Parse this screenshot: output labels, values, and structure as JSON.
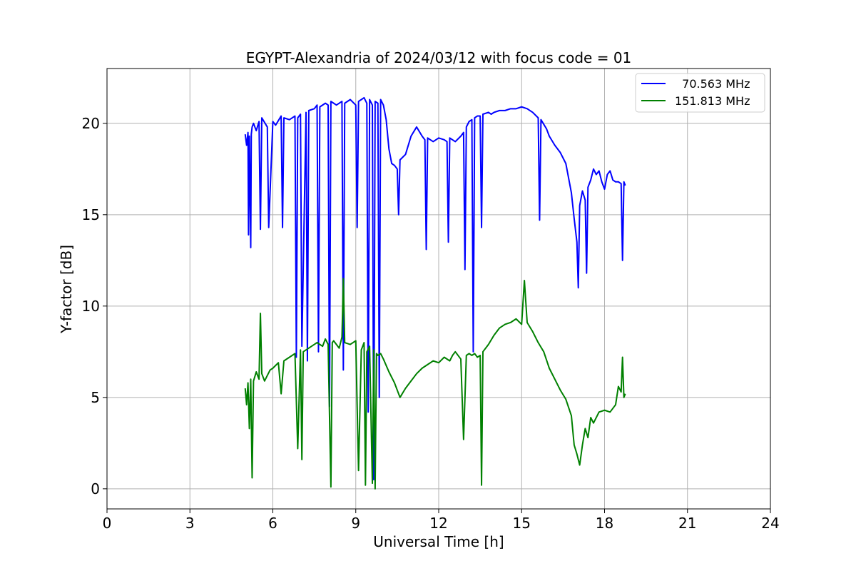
{
  "chart_data": {
    "type": "line",
    "title": "EGYPT-Alexandria of 2024/03/12 with focus code = 01",
    "xlabel": "Universal Time [h]",
    "ylabel": "Y-factor [dB]",
    "xlim": [
      0,
      24
    ],
    "ylim": [
      -1.1,
      23
    ],
    "xticks": [
      0,
      3,
      6,
      9,
      12,
      15,
      18,
      21,
      24
    ],
    "yticks": [
      0,
      5,
      10,
      15,
      20
    ],
    "grid": true,
    "legend": "top-right",
    "series": [
      {
        "name": "  70.563 MHz",
        "color": "#0000ff",
        "x": [
          5.0,
          5.05,
          5.1,
          5.12,
          5.15,
          5.2,
          5.22,
          5.25,
          5.3,
          5.4,
          5.5,
          5.55,
          5.6,
          5.8,
          5.85,
          6.0,
          6.1,
          6.3,
          6.35,
          6.4,
          6.6,
          6.8,
          6.85,
          6.9,
          7.0,
          7.05,
          7.2,
          7.25,
          7.3,
          7.5,
          7.6,
          7.65,
          7.7,
          7.9,
          8.0,
          8.05,
          8.1,
          8.2,
          8.3,
          8.5,
          8.55,
          8.6,
          8.8,
          9.0,
          9.05,
          9.1,
          9.3,
          9.4,
          9.45,
          9.5,
          9.6,
          9.65,
          9.7,
          9.8,
          9.85,
          9.9,
          10.0,
          10.1,
          10.2,
          10.3,
          10.4,
          10.5,
          10.55,
          10.6,
          10.8,
          11.0,
          11.2,
          11.4,
          11.5,
          11.55,
          11.6,
          11.8,
          12.0,
          12.2,
          12.3,
          12.35,
          12.4,
          12.6,
          12.8,
          12.9,
          12.95,
          13.0,
          13.1,
          13.2,
          13.25,
          13.3,
          13.4,
          13.5,
          13.55,
          13.6,
          13.8,
          13.9,
          14.0,
          14.2,
          14.4,
          14.6,
          14.8,
          15.0,
          15.2,
          15.4,
          15.6,
          15.65,
          15.7,
          15.9,
          16.0,
          16.2,
          16.4,
          16.6,
          16.8,
          16.9,
          17.0,
          17.05,
          17.1,
          17.2,
          17.3,
          17.35,
          17.4,
          17.5,
          17.6,
          17.7,
          17.8,
          17.9,
          18.0,
          18.1,
          18.2,
          18.3,
          18.4,
          18.5,
          18.6,
          18.65,
          18.7,
          18.75
        ],
        "y": [
          19.4,
          18.8,
          19.5,
          13.9,
          19.3,
          13.2,
          19.4,
          19.8,
          20.0,
          19.6,
          20.1,
          14.2,
          20.3,
          19.8,
          14.3,
          20.1,
          19.9,
          20.4,
          14.3,
          20.3,
          20.2,
          20.4,
          7.2,
          20.3,
          20.5,
          7.8,
          20.6,
          7.0,
          20.7,
          20.8,
          21.0,
          7.5,
          20.9,
          21.1,
          21.0,
          4.5,
          21.2,
          21.1,
          21.0,
          21.2,
          6.5,
          21.1,
          21.3,
          21.0,
          14.3,
          21.2,
          21.4,
          21.1,
          4.2,
          21.3,
          21.0,
          0.5,
          21.2,
          21.1,
          5.0,
          21.3,
          21.0,
          20.2,
          18.6,
          17.8,
          17.7,
          17.5,
          15.0,
          18.0,
          18.3,
          19.3,
          19.8,
          19.3,
          19.1,
          13.1,
          19.2,
          19.0,
          19.2,
          19.1,
          19.0,
          13.5,
          19.2,
          19.0,
          19.3,
          19.5,
          12.0,
          19.8,
          20.1,
          20.2,
          7.5,
          20.3,
          20.4,
          20.4,
          14.3,
          20.5,
          20.6,
          20.5,
          20.6,
          20.7,
          20.7,
          20.8,
          20.8,
          20.9,
          20.8,
          20.6,
          20.3,
          14.7,
          20.2,
          19.7,
          19.3,
          18.8,
          18.4,
          17.8,
          16.2,
          14.8,
          13.5,
          11.0,
          15.5,
          16.3,
          15.8,
          11.8,
          16.5,
          16.9,
          17.5,
          17.2,
          17.4,
          16.8,
          16.4,
          17.2,
          17.4,
          16.9,
          16.8,
          16.8,
          16.7,
          12.5,
          16.8,
          16.6
        ]
      },
      {
        "name": "151.813 MHz",
        "color": "#008000",
        "x": [
          5.0,
          5.05,
          5.1,
          5.15,
          5.2,
          5.25,
          5.3,
          5.4,
          5.5,
          5.55,
          5.6,
          5.7,
          5.8,
          5.9,
          6.0,
          6.2,
          6.3,
          6.4,
          6.6,
          6.8,
          6.9,
          7.0,
          7.05,
          7.1,
          7.3,
          7.5,
          7.6,
          7.8,
          7.9,
          8.0,
          8.1,
          8.15,
          8.2,
          8.4,
          8.5,
          8.55,
          8.6,
          8.8,
          9.0,
          9.1,
          9.2,
          9.3,
          9.35,
          9.4,
          9.5,
          9.6,
          9.65,
          9.7,
          9.75,
          9.8,
          9.9,
          10.0,
          10.2,
          10.4,
          10.6,
          10.8,
          11.0,
          11.2,
          11.4,
          11.6,
          11.8,
          12.0,
          12.2,
          12.4,
          12.5,
          12.6,
          12.8,
          12.9,
          13.0,
          13.1,
          13.2,
          13.3,
          13.4,
          13.5,
          13.55,
          13.6,
          13.8,
          14.0,
          14.2,
          14.4,
          14.6,
          14.8,
          15.0,
          15.1,
          15.2,
          15.4,
          15.6,
          15.8,
          16.0,
          16.2,
          16.4,
          16.6,
          16.8,
          16.9,
          17.0,
          17.1,
          17.2,
          17.3,
          17.4,
          17.5,
          17.6,
          17.8,
          18.0,
          18.2,
          18.4,
          18.5,
          18.6,
          18.65,
          18.7,
          18.75
        ],
        "y": [
          5.5,
          4.6,
          5.8,
          3.3,
          6.0,
          0.6,
          5.9,
          6.4,
          6.0,
          9.6,
          6.3,
          5.9,
          6.2,
          6.5,
          6.6,
          6.9,
          5.2,
          7.0,
          7.2,
          7.4,
          2.2,
          7.6,
          1.6,
          7.5,
          7.7,
          7.9,
          8.0,
          7.8,
          8.2,
          7.9,
          0.1,
          8.0,
          8.1,
          7.7,
          8.3,
          11.5,
          8.0,
          7.9,
          8.1,
          1.0,
          7.6,
          8.0,
          0.2,
          7.5,
          7.8,
          0.3,
          7.6,
          0.0,
          7.4,
          7.3,
          7.4,
          7.1,
          6.4,
          5.8,
          5.0,
          5.5,
          5.9,
          6.3,
          6.6,
          6.8,
          7.0,
          6.9,
          7.2,
          7.0,
          7.3,
          7.5,
          7.1,
          2.7,
          7.3,
          7.4,
          7.3,
          7.4,
          7.2,
          7.3,
          0.2,
          7.5,
          7.9,
          8.4,
          8.8,
          9.0,
          9.1,
          9.3,
          9.0,
          11.4,
          9.1,
          8.6,
          8.0,
          7.5,
          6.6,
          6.0,
          5.4,
          4.9,
          4.0,
          2.4,
          1.9,
          1.3,
          2.4,
          3.3,
          2.8,
          3.9,
          3.6,
          4.2,
          4.3,
          4.2,
          4.6,
          5.6,
          5.3,
          7.2,
          5.0,
          5.2
        ]
      }
    ]
  }
}
